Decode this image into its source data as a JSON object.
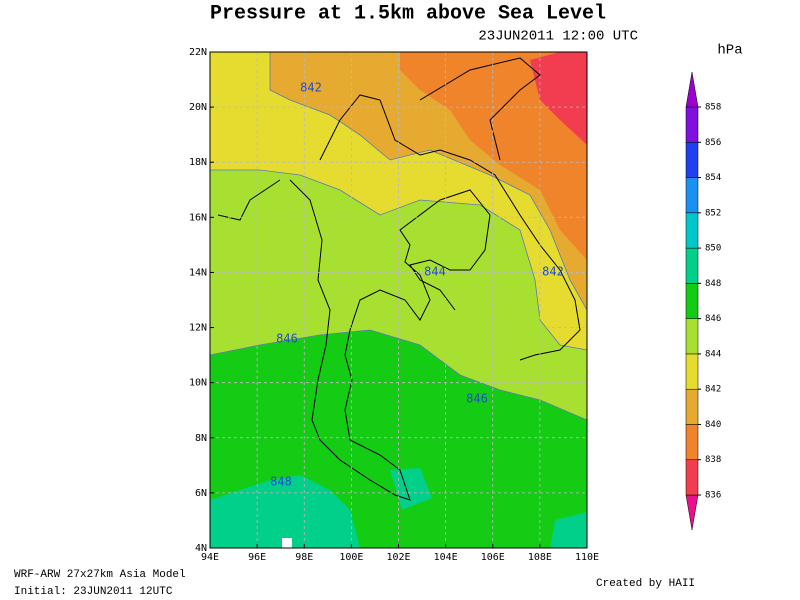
{
  "header": {
    "title": "Pressure at 1.5km above Sea Level",
    "time": "23JUN2011 12:00 UTC",
    "unit": "hPa"
  },
  "map": {
    "lon_labels": [
      "94E",
      "96E",
      "98E",
      "100E",
      "102E",
      "104E",
      "106E",
      "108E",
      "110E"
    ],
    "lat_labels": [
      "4N",
      "6N",
      "8N",
      "10N",
      "12N",
      "14N",
      "16N",
      "18N",
      "20N",
      "22N"
    ],
    "contour_labels": [
      "842",
      "844",
      "842",
      "846",
      "846",
      "848"
    ]
  },
  "colorbar": {
    "levels": [
      836,
      838,
      840,
      842,
      844,
      846,
      848,
      850,
      852,
      854,
      856,
      858
    ],
    "colors": [
      "#e8108c",
      "#f23c50",
      "#f0842a",
      "#e6aa30",
      "#e6dc30",
      "#a8e032",
      "#14cc14",
      "#00d08a",
      "#00c8c8",
      "#1a90f0",
      "#2040f0",
      "#8010e0",
      "#9a00d0"
    ]
  },
  "footer": {
    "model": "WRF-ARW 27x27km Asia Model",
    "initial": "Initial: 23JUN2011 12UTC",
    "credit": "Created by HAII"
  }
}
